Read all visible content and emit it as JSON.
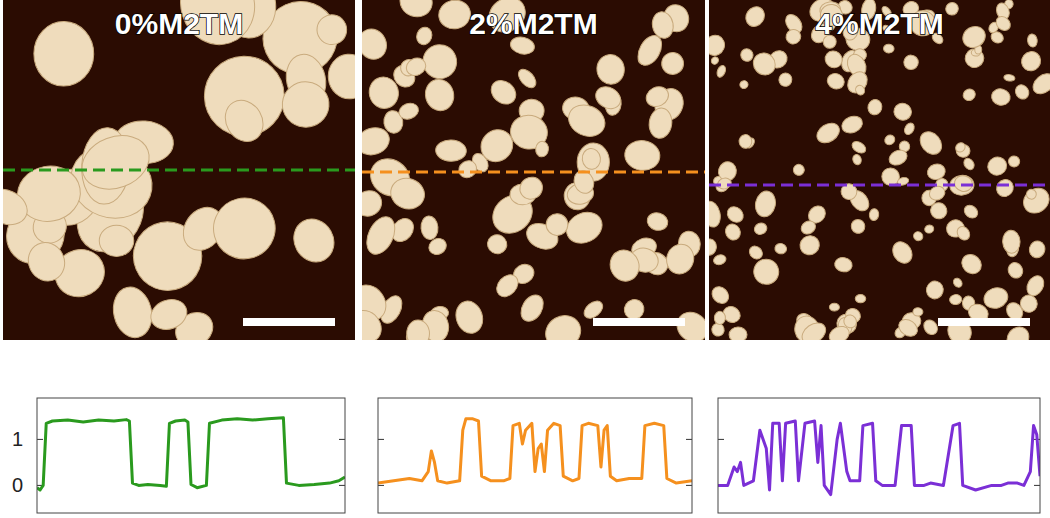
{
  "chart_data": [
    {
      "type": "line",
      "title": "0%M2TM",
      "color": "#2a9a1e",
      "x": [
        0,
        1,
        2,
        3,
        5,
        10,
        15,
        20,
        25,
        29,
        30,
        31,
        33,
        36,
        40,
        42,
        43,
        45,
        48,
        49,
        50,
        52,
        55,
        56,
        60,
        65,
        70,
        75,
        80,
        81,
        85,
        90,
        95,
        98,
        100
      ],
      "values": [
        -0.05,
        -0.1,
        0.0,
        1.35,
        1.4,
        1.42,
        1.38,
        1.42,
        1.4,
        1.43,
        1.4,
        0.05,
        0.0,
        0.02,
        0.0,
        -0.02,
        1.35,
        1.4,
        1.42,
        1.38,
        0.02,
        -0.05,
        0.0,
        1.35,
        1.42,
        1.45,
        1.42,
        1.45,
        1.47,
        0.05,
        0.0,
        0.02,
        0.05,
        0.1,
        0.18
      ],
      "xlim": [
        0,
        100
      ],
      "ylim": [
        -0.6,
        1.9
      ],
      "yticks": [
        0,
        1
      ],
      "tick_labels": "y"
    },
    {
      "type": "line",
      "title": "2%M2TM",
      "color": "#f5901e",
      "x": [
        0,
        5,
        10,
        14,
        16,
        17,
        18,
        19,
        22,
        26,
        27,
        28,
        30,
        32,
        33,
        36,
        40,
        42,
        43,
        45,
        46,
        47,
        49,
        50,
        51,
        52,
        53,
        54,
        56,
        58,
        59,
        62,
        64,
        65,
        67,
        70,
        71,
        72,
        73,
        74,
        76,
        80,
        84,
        85,
        88,
        91,
        92,
        95,
        100
      ],
      "values": [
        0.05,
        0.1,
        0.15,
        0.1,
        0.3,
        0.75,
        0.5,
        0.1,
        0.05,
        0.1,
        1.2,
        1.45,
        1.45,
        1.4,
        0.2,
        0.1,
        0.1,
        0.15,
        1.3,
        1.35,
        0.9,
        1.2,
        1.35,
        0.3,
        0.8,
        0.9,
        0.3,
        1.2,
        1.35,
        1.3,
        0.2,
        0.1,
        0.15,
        1.3,
        1.35,
        1.3,
        0.4,
        1.2,
        1.3,
        0.2,
        0.1,
        0.15,
        0.15,
        1.3,
        1.35,
        1.3,
        0.15,
        0.05,
        0.1
      ],
      "xlim": [
        0,
        100
      ],
      "ylim": [
        -0.6,
        1.9
      ],
      "yticks": [
        0,
        1
      ],
      "tick_labels": false
    },
    {
      "type": "line",
      "title": "4%M2TM",
      "color": "#7b2fd6",
      "x": [
        0,
        3,
        5,
        6,
        7,
        8,
        11,
        13,
        15,
        16,
        17,
        19,
        20,
        21,
        24,
        25,
        27,
        30,
        31,
        32,
        33,
        35,
        37,
        38,
        40,
        41,
        44,
        45,
        48,
        49,
        51,
        55,
        57,
        60,
        61,
        64,
        66,
        70,
        73,
        75,
        76,
        80,
        85,
        88,
        90,
        93,
        95,
        97,
        98,
        99,
        100
      ],
      "values": [
        0.0,
        0.0,
        0.4,
        0.3,
        0.5,
        0.0,
        0.1,
        1.2,
        0.8,
        -0.1,
        1.35,
        1.35,
        0.1,
        1.35,
        1.4,
        0.1,
        1.35,
        1.4,
        0.5,
        1.3,
        0.0,
        -0.2,
        1.0,
        1.35,
        0.3,
        0.1,
        0.1,
        1.3,
        1.35,
        0.1,
        0.0,
        0.0,
        1.3,
        1.3,
        0.0,
        0.0,
        0.05,
        0.0,
        1.3,
        1.35,
        0.0,
        -0.1,
        0.0,
        0.0,
        0.05,
        0.05,
        0.0,
        0.3,
        1.3,
        1.1,
        0.2
      ],
      "xlim": [
        0,
        100
      ],
      "ylim": [
        -0.6,
        1.9
      ],
      "yticks": [
        0,
        1
      ],
      "tick_labels": false
    }
  ]
}
